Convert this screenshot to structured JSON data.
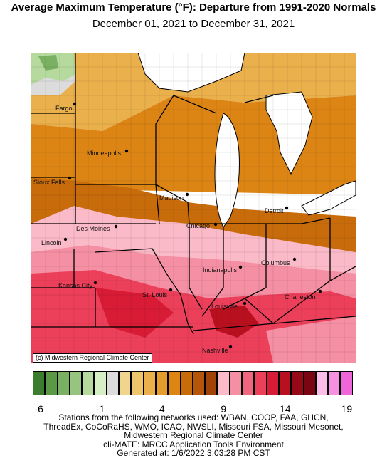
{
  "title": "Average Maximum Temperature (°F): Departure from 1991-2020 Normals",
  "subtitle": "December 01, 2021 to December 31, 2021",
  "credit": "(c) Midwestern Regional Climate Center",
  "cities": [
    {
      "name": "Fargo"
    },
    {
      "name": "Minneapolis"
    },
    {
      "name": "Sioux Falls"
    },
    {
      "name": "Madison"
    },
    {
      "name": "Des Moines"
    },
    {
      "name": "Chicago"
    },
    {
      "name": "Detroit"
    },
    {
      "name": "Lincoln"
    },
    {
      "name": "Columbus"
    },
    {
      "name": "Indianapolis"
    },
    {
      "name": "Kansas City"
    },
    {
      "name": "Charleston"
    },
    {
      "name": "St. Louis"
    },
    {
      "name": "Louisville"
    },
    {
      "name": "Nashville"
    }
  ],
  "legend": {
    "colors": [
      "#3a7d2c",
      "#5a9a45",
      "#79b062",
      "#97c580",
      "#b6da9e",
      "#d6efc4",
      "#dcdcdc",
      "#f1d58f",
      "#eec46d",
      "#eab04c",
      "#e49c2d",
      "#dc8515",
      "#c86c0b",
      "#b4550a",
      "#a14306",
      "#fbbac8",
      "#f58fa4",
      "#f06580",
      "#ec3f5a",
      "#d91c36",
      "#b8101f",
      "#970818",
      "#7a0513",
      "#f9bde8",
      "#f690e0",
      "#ef66d8"
    ],
    "tick_labels": [
      "-6",
      "-1",
      "4",
      "9",
      "14",
      "19"
    ]
  },
  "footer": [
    "Stations from the following networks used: WBAN, COOP, FAA, GHCN,",
    "ThreadEx, CoCoRaHS, WMO, ICAO, NWSLI, Missouri FSA, Missouri Mesonet,",
    "Midwestern Regional Climate Center",
    "cli-MATE: MRCC Application Tools Environment",
    "Generated at: 1/6/2022 3:03:28 PM CST"
  ]
}
